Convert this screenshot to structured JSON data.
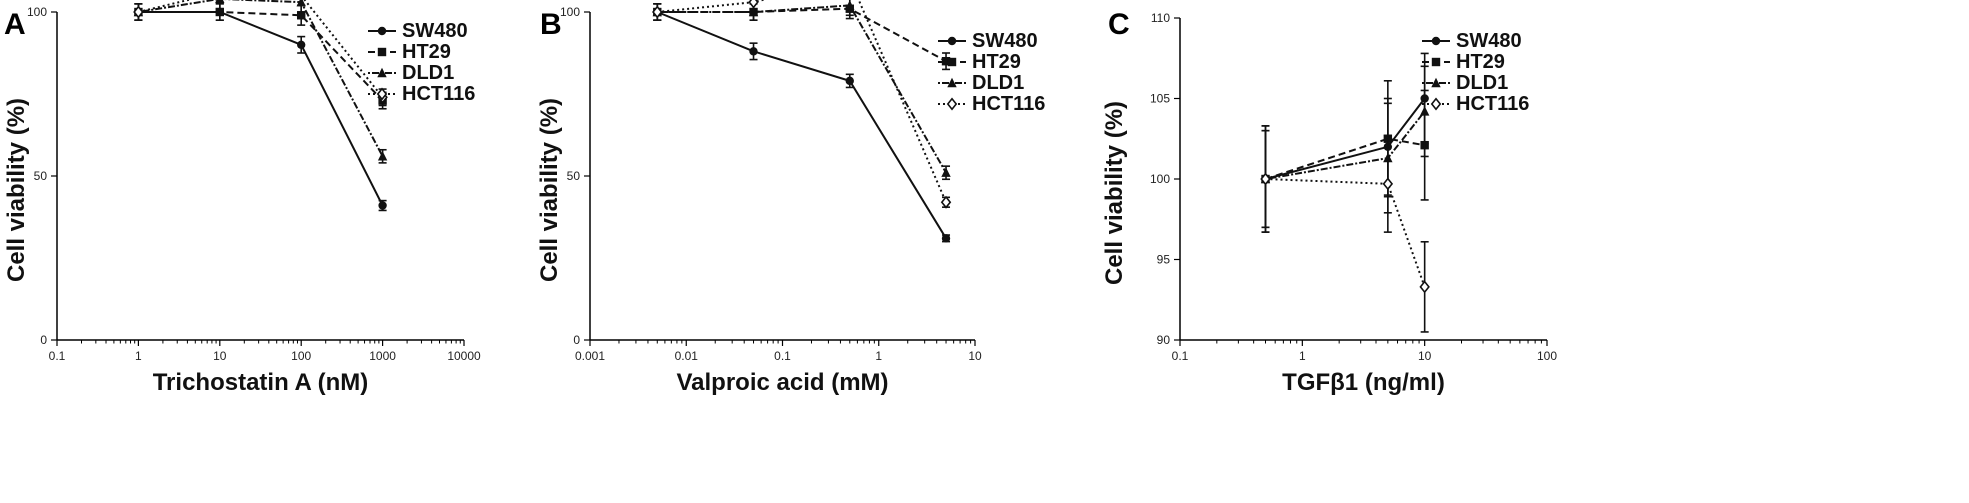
{
  "legend_series": [
    "SW480",
    "HT29",
    "DLD1",
    "HCT116"
  ],
  "chart_data": [
    {
      "panel": "A",
      "type": "line",
      "xlabel": "Trichostatin A (nM)",
      "ylabel": "Cell viability (%)",
      "x_scale": "log",
      "xlim": [
        0.1,
        10000
      ],
      "ylim": [
        0,
        100
      ],
      "x_ticks": [
        0.1,
        1,
        10,
        100,
        1000,
        10000
      ],
      "x_tick_labels": [
        "0.1",
        "1",
        "10",
        "100",
        "1000",
        "10000"
      ],
      "y_ticks": [
        0,
        50,
        100
      ],
      "y_tick_labels": [
        "0",
        "50",
        "100"
      ],
      "grid": false,
      "legend_position": "top-right",
      "series": [
        {
          "name": "SW480",
          "x": [
            1,
            10,
            100,
            1000
          ],
          "y": [
            100,
            100,
            90,
            41
          ],
          "err": [
            2.5,
            2.5,
            2.5,
            1.5
          ]
        },
        {
          "name": "HT29",
          "x": [
            1,
            10,
            100,
            1000
          ],
          "y": [
            100,
            100,
            99,
            73
          ],
          "err": [
            2.5,
            2.5,
            3,
            2.5
          ]
        },
        {
          "name": "DLD1",
          "x": [
            1,
            10,
            100,
            1000
          ],
          "y": [
            100,
            104,
            103,
            56
          ],
          "err": [
            2.5,
            3,
            3,
            2
          ]
        },
        {
          "name": "HCT116",
          "x": [
            1,
            10,
            100,
            1000
          ],
          "y": [
            100,
            106,
            105,
            74
          ],
          "err": [
            2.5,
            3,
            3,
            2.5
          ]
        }
      ]
    },
    {
      "panel": "B",
      "type": "line",
      "xlabel": "Valproic acid (mM)",
      "ylabel": "Cell viability (%)",
      "x_scale": "log",
      "xlim": [
        0.001,
        10
      ],
      "ylim": [
        0,
        100
      ],
      "x_ticks": [
        0.001,
        0.01,
        0.1,
        1,
        10
      ],
      "x_tick_labels": [
        "0.001",
        "0.01",
        "0.1",
        "1",
        "10"
      ],
      "y_ticks": [
        0,
        50,
        100
      ],
      "y_tick_labels": [
        "0",
        "50",
        "100"
      ],
      "grid": false,
      "legend_position": "top-right",
      "series": [
        {
          "name": "SW480",
          "x": [
            0.005,
            0.05,
            0.5,
            5
          ],
          "y": [
            100,
            88,
            79,
            31
          ],
          "err": [
            2.5,
            2.5,
            2,
            1
          ]
        },
        {
          "name": "HT29",
          "x": [
            0.005,
            0.05,
            0.5,
            5
          ],
          "y": [
            100,
            100,
            101,
            85
          ],
          "err": [
            2.5,
            2.5,
            3,
            2.5
          ]
        },
        {
          "name": "DLD1",
          "x": [
            0.005,
            0.05,
            0.5,
            5
          ],
          "y": [
            100,
            100,
            102,
            51
          ],
          "err": [
            2.5,
            2.5,
            3,
            2
          ]
        },
        {
          "name": "HCT116",
          "x": [
            0.005,
            0.05,
            0.5,
            5
          ],
          "y": [
            100,
            103,
            110,
            42
          ],
          "err": [
            2.5,
            3,
            3,
            1.5
          ]
        }
      ]
    },
    {
      "panel": "C",
      "type": "line",
      "xlabel": "TGFβ1 (ng/ml)",
      "ylabel": "Cell viability (%)",
      "x_scale": "log",
      "xlim": [
        0.1,
        100
      ],
      "ylim": [
        90,
        110
      ],
      "x_ticks": [
        0.1,
        1,
        10,
        100
      ],
      "x_tick_labels": [
        "0.1",
        "1",
        "10",
        "100"
      ],
      "y_ticks": [
        90,
        95,
        100,
        105,
        110
      ],
      "y_tick_labels": [
        "90",
        "95",
        "100",
        "105",
        "110"
      ],
      "grid": false,
      "legend_position": "top-right",
      "series": [
        {
          "name": "SW480",
          "x": [
            0.5,
            5,
            10
          ],
          "y": [
            100,
            102,
            105
          ],
          "err": [
            3,
            3,
            2.8
          ]
        },
        {
          "name": "HT29",
          "x": [
            0.5,
            5,
            10
          ],
          "y": [
            100,
            102.5,
            102.1
          ],
          "err": [
            3.3,
            3.6,
            3.4
          ]
        },
        {
          "name": "DLD1",
          "x": [
            0.5,
            5,
            10
          ],
          "y": [
            100,
            101.3,
            104.2
          ],
          "err": [
            3,
            3.4,
            2.8
          ]
        },
        {
          "name": "HCT116",
          "x": [
            0.5,
            5,
            10
          ],
          "y": [
            100,
            99.7,
            93.3
          ],
          "err": [
            3.3,
            3,
            2.8
          ]
        }
      ]
    }
  ]
}
